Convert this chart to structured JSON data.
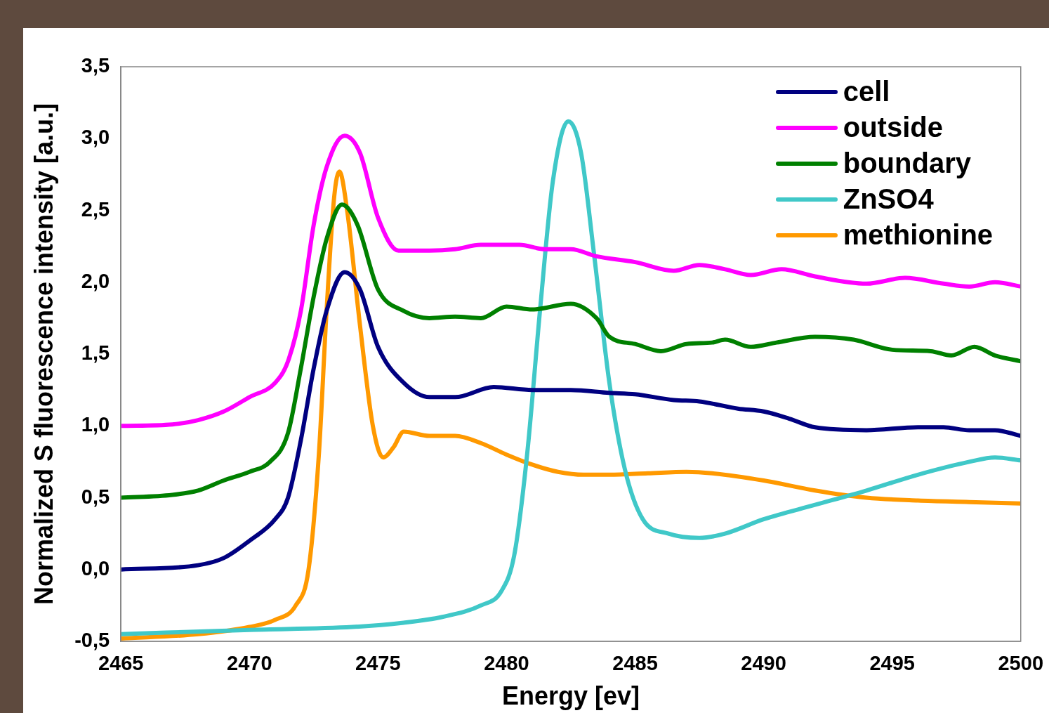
{
  "chart_data": {
    "type": "line",
    "xlabel": "Energy [ev]",
    "ylabel": "Normalized S fluorescence intensity [a.u.]",
    "xlim": [
      2465,
      2500
    ],
    "xticks": [
      2465,
      2470,
      2475,
      2480,
      2485,
      2490,
      2495,
      2500
    ],
    "ylim": [
      -0.5,
      3.5
    ],
    "yticks": [
      {
        "value": -0.5,
        "label": "-0,5"
      },
      {
        "value": 0,
        "label": "0,0"
      },
      {
        "value": 0.5,
        "label": "0,5"
      },
      {
        "value": 1,
        "label": "1,0"
      },
      {
        "value": 1.5,
        "label": "1,5"
      },
      {
        "value": 2,
        "label": "2,0"
      },
      {
        "value": 2.5,
        "label": "2,5"
      },
      {
        "value": 3,
        "label": "3,0"
      },
      {
        "value": 3.5,
        "label": "3,5"
      }
    ],
    "grid": false,
    "legend": "top right",
    "marker": "none",
    "line_style": "solid",
    "series": [
      {
        "name": "cell",
        "color": "#000080",
        "x": [
          2465,
          2468,
          2469,
          2470,
          2471,
          2471.5,
          2472,
          2472.5,
          2473,
          2473.7,
          2474.3,
          2475,
          2476,
          2477,
          2478,
          2479.5,
          2481,
          2482.5,
          2484,
          2485,
          2486.5,
          2487.5,
          2489,
          2490,
          2491,
          2492,
          2494,
          2496,
          2497,
          2498,
          2499,
          2500
        ],
        "values": [
          0.0,
          0.03,
          0.08,
          0.2,
          0.35,
          0.5,
          0.9,
          1.4,
          1.8,
          2.07,
          1.95,
          1.55,
          1.3,
          1.2,
          1.2,
          1.27,
          1.25,
          1.25,
          1.23,
          1.22,
          1.18,
          1.17,
          1.12,
          1.1,
          1.05,
          0.99,
          0.97,
          0.99,
          0.99,
          0.97,
          0.97,
          0.93
        ]
      },
      {
        "name": "outside",
        "color": "#ff00ff",
        "x": [
          2465,
          2467,
          2468,
          2469,
          2470,
          2471,
          2471.5,
          2472,
          2472.5,
          2473,
          2473.7,
          2474.3,
          2475,
          2475.8,
          2477,
          2478,
          2479,
          2480.5,
          2481.5,
          2482.5,
          2483.5,
          2485,
          2486.5,
          2487.5,
          2488.5,
          2489.5,
          2490.7,
          2492,
          2494,
          2495.5,
          2497,
          2498,
          2499,
          2500
        ],
        "values": [
          1.0,
          1.01,
          1.04,
          1.1,
          1.2,
          1.3,
          1.45,
          1.8,
          2.4,
          2.8,
          3.02,
          2.9,
          2.45,
          2.22,
          2.22,
          2.23,
          2.26,
          2.26,
          2.23,
          2.23,
          2.18,
          2.14,
          2.08,
          2.12,
          2.09,
          2.05,
          2.09,
          2.04,
          1.99,
          2.03,
          1.99,
          1.97,
          2.0,
          1.97
        ]
      },
      {
        "name": "boundary",
        "color": "#008000",
        "x": [
          2465,
          2467,
          2468,
          2469,
          2470,
          2470.8,
          2471.5,
          2472,
          2472.5,
          2473,
          2473.6,
          2474.2,
          2475,
          2476,
          2477,
          2478,
          2479,
          2480,
          2481,
          2482.5,
          2483.5,
          2484,
          2485,
          2486,
          2487,
          2488,
          2488.5,
          2489.5,
          2490.5,
          2492,
          2493.5,
          2495,
          2496.5,
          2497.3,
          2498.2,
          2499,
          2500
        ],
        "values": [
          0.5,
          0.52,
          0.55,
          0.62,
          0.68,
          0.75,
          0.95,
          1.4,
          1.9,
          2.3,
          2.54,
          2.4,
          1.95,
          1.8,
          1.75,
          1.76,
          1.75,
          1.83,
          1.81,
          1.85,
          1.75,
          1.62,
          1.57,
          1.52,
          1.57,
          1.58,
          1.6,
          1.55,
          1.58,
          1.62,
          1.6,
          1.53,
          1.52,
          1.49,
          1.55,
          1.49,
          1.45
        ]
      },
      {
        "name": "ZnSO4",
        "color": "#40c8c8",
        "x": [
          2465,
          2470,
          2474,
          2476,
          2477.5,
          2479,
          2479.8,
          2480.3,
          2480.8,
          2481.3,
          2481.8,
          2482.4,
          2482.9,
          2483.4,
          2484,
          2484.6,
          2485.3,
          2486.3,
          2487.5,
          2488.5,
          2490,
          2492,
          2494,
          2496,
          2498,
          2499,
          2500
        ],
        "values": [
          -0.45,
          -0.42,
          -0.4,
          -0.37,
          -0.33,
          -0.25,
          -0.15,
          0.1,
          0.8,
          1.8,
          2.7,
          3.12,
          2.9,
          2.2,
          1.3,
          0.7,
          0.35,
          0.25,
          0.22,
          0.25,
          0.35,
          0.45,
          0.55,
          0.66,
          0.75,
          0.78,
          0.76
        ]
      },
      {
        "name": "methionine",
        "color": "#ff9900",
        "x": [
          2465,
          2468,
          2470,
          2471,
          2471.8,
          2472.3,
          2472.7,
          2473,
          2473.3,
          2473.5,
          2473.8,
          2474.3,
          2474.8,
          2475.2,
          2475.6,
          2476,
          2477,
          2478,
          2479,
          2480,
          2481,
          2482,
          2483,
          2484,
          2485.5,
          2487,
          2488,
          2490,
          2492,
          2494,
          2496,
          2498,
          2500
        ],
        "values": [
          -0.48,
          -0.45,
          -0.4,
          -0.35,
          -0.25,
          0.0,
          0.8,
          1.8,
          2.6,
          2.77,
          2.5,
          1.7,
          1.0,
          0.78,
          0.85,
          0.96,
          0.93,
          0.93,
          0.88,
          0.8,
          0.73,
          0.68,
          0.66,
          0.66,
          0.67,
          0.68,
          0.67,
          0.62,
          0.55,
          0.5,
          0.48,
          0.47,
          0.46
        ]
      }
    ]
  }
}
